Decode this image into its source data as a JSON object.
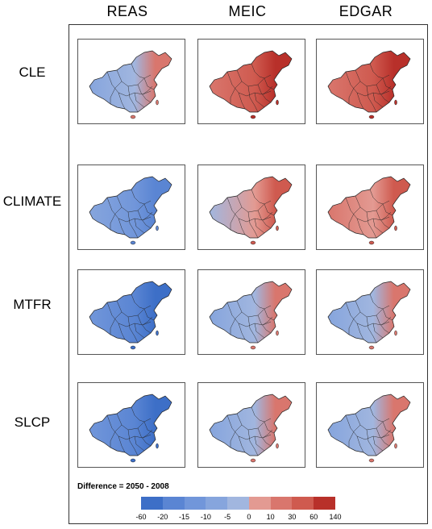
{
  "columns": [
    "REAS",
    "MEIC",
    "EDGAR"
  ],
  "rows": [
    "CLE",
    "CLIMATE",
    "MTFR",
    "SLCP"
  ],
  "panel_tone": [
    [
      "mixed-blue",
      "red",
      "red"
    ],
    [
      "blue",
      "mixed",
      "mixed-red"
    ],
    [
      "deep-blue",
      "mixed-blue",
      "mixed-blue"
    ],
    [
      "deep-blue",
      "mixed-blue",
      "mixed-blue"
    ]
  ],
  "legend": {
    "title": "Difference = 2050 - 2008",
    "ticks": [
      "-60",
      "-20",
      "-15",
      "-10",
      "-5",
      "0",
      "10",
      "30",
      "60",
      "140"
    ],
    "colors": [
      "#3d6fc7",
      "#5a85d3",
      "#7196da",
      "#86a5dd",
      "#a1b6df",
      "#e39a92",
      "#d9766d",
      "#cf5a4f",
      "#b8302a"
    ]
  }
}
